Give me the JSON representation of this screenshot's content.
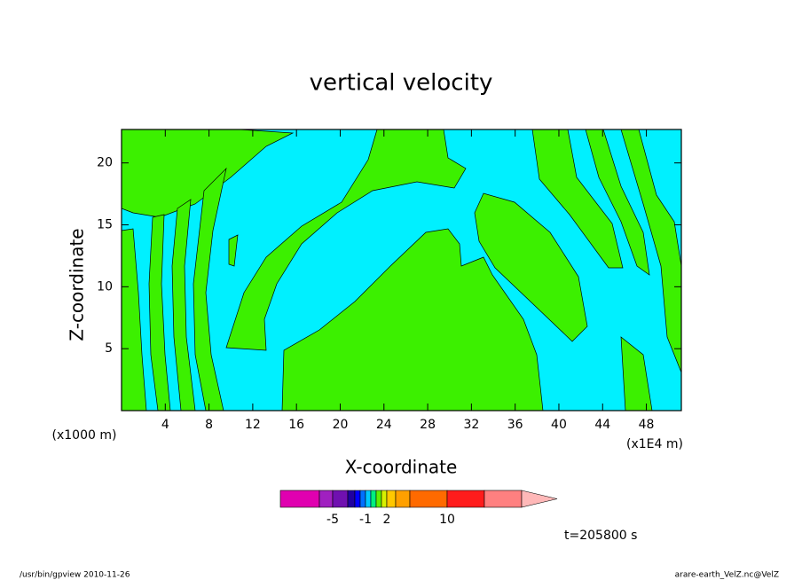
{
  "chart_data": {
    "type": "contour",
    "title": "vertical velocity",
    "xlabel": "X-coordinate",
    "ylabel": "Z-coordinate",
    "xunit": "(x1E4 m)",
    "yunit": "(x1000 m)",
    "xlim": [
      0,
      51.2
    ],
    "ylim": [
      0,
      22.7
    ],
    "xticks": [
      4,
      8,
      12,
      16,
      20,
      24,
      28,
      32,
      36,
      40,
      44,
      48
    ],
    "yticks": [
      5,
      10,
      15,
      20
    ],
    "colorbar": {
      "colors": [
        "#e000b0",
        "#a020c0",
        "#7010b0",
        "#2000a0",
        "#0000ff",
        "#0070ff",
        "#00c8ff",
        "#00f080",
        "#60f000",
        "#d8f000",
        "#ffc800",
        "#ffa000",
        "#ff6a00",
        "#ff1c1c",
        "#ff8080",
        "#ffb8b8"
      ],
      "ticks": [
        -5,
        -1,
        2,
        10
      ]
    },
    "time_label": "t=205800 s"
  },
  "footer": {
    "left": "/usr/bin/gpview  2010-11-26",
    "right": "arare-earth_VelZ.nc@VelZ"
  }
}
